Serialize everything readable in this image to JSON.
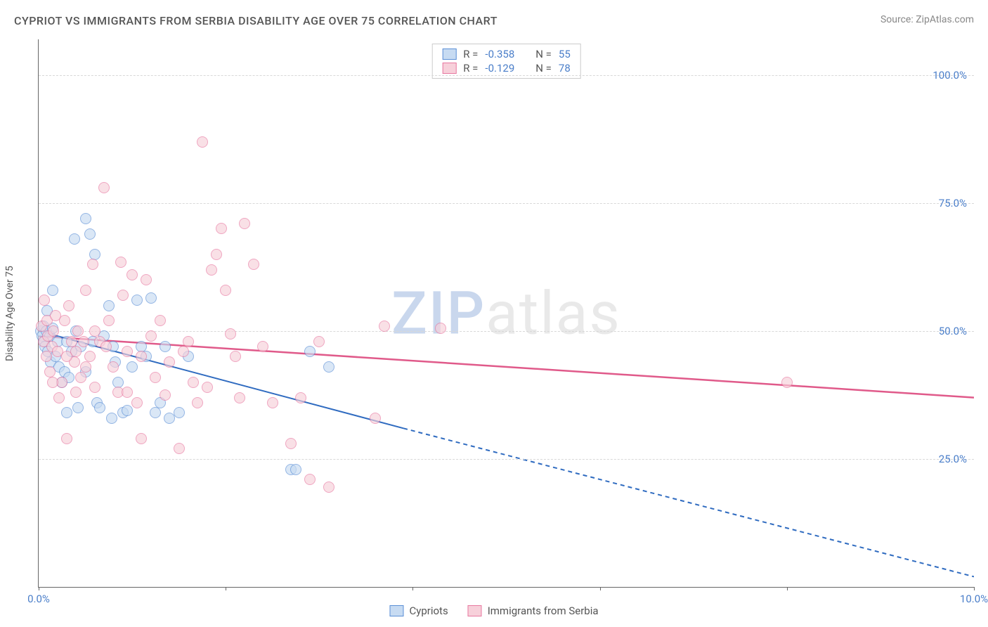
{
  "title": "CYPRIOT VS IMMIGRANTS FROM SERBIA DISABILITY AGE OVER 75 CORRELATION CHART",
  "source": "Source: ZipAtlas.com",
  "watermark": {
    "part1": "ZIP",
    "part2": "atlas"
  },
  "y_axis_title": "Disability Age Over 75",
  "chart": {
    "type": "scatter",
    "xlim": [
      0,
      10
    ],
    "ylim": [
      0,
      107
    ],
    "x_ticks": [
      0,
      2,
      4,
      6,
      8,
      10
    ],
    "x_tick_labels": {
      "0": "0.0%",
      "10": "10.0%"
    },
    "y_grid": [
      25,
      50,
      75,
      100
    ],
    "y_tick_labels": [
      "25.0%",
      "50.0%",
      "75.0%",
      "100.0%"
    ],
    "grid_color": "#d8d8d8",
    "axis_color": "#666666",
    "background_color": "#ffffff",
    "tick_label_color": "#4a7ec9",
    "tick_label_fontsize": 15,
    "point_radius": 8,
    "point_border_width": 1.5,
    "series": [
      {
        "name": "Cypriots",
        "fill": "#c7dbf2",
        "stroke": "#5b8fd6",
        "fill_opacity": 0.65,
        "R": "-0.358",
        "N": "55",
        "trend": {
          "x1": 0,
          "y1": 50,
          "x2": 3.9,
          "y2": 31,
          "solid_to_x": 3.9,
          "dash_to_x": 10,
          "dash_to_y": 2,
          "color": "#2f6bc0",
          "width": 2
        },
        "points": [
          [
            0.02,
            50
          ],
          [
            0.04,
            49
          ],
          [
            0.05,
            51
          ],
          [
            0.06,
            48
          ],
          [
            0.07,
            47
          ],
          [
            0.08,
            50
          ],
          [
            0.09,
            54
          ],
          [
            0.1,
            46
          ],
          [
            0.12,
            49
          ],
          [
            0.13,
            44
          ],
          [
            0.15,
            50.5
          ],
          [
            0.15,
            58
          ],
          [
            0.18,
            45
          ],
          [
            0.2,
            48
          ],
          [
            0.22,
            43
          ],
          [
            0.25,
            40
          ],
          [
            0.28,
            42
          ],
          [
            0.3,
            48
          ],
          [
            0.32,
            41
          ],
          [
            0.35,
            46
          ],
          [
            0.4,
            50
          ],
          [
            0.42,
            35
          ],
          [
            0.45,
            47
          ],
          [
            0.5,
            42
          ],
          [
            0.55,
            69
          ],
          [
            0.58,
            48
          ],
          [
            0.6,
            65
          ],
          [
            0.62,
            36
          ],
          [
            0.65,
            35
          ],
          [
            0.7,
            49
          ],
          [
            0.75,
            55
          ],
          [
            0.78,
            33
          ],
          [
            0.8,
            47
          ],
          [
            0.82,
            44
          ],
          [
            0.85,
            40
          ],
          [
            0.9,
            34
          ],
          [
            0.95,
            34.5
          ],
          [
            1.0,
            43
          ],
          [
            1.05,
            56
          ],
          [
            1.1,
            47
          ],
          [
            1.15,
            45
          ],
          [
            1.2,
            56.5
          ],
          [
            1.25,
            34
          ],
          [
            1.3,
            36
          ],
          [
            1.35,
            47
          ],
          [
            1.4,
            33
          ],
          [
            1.5,
            34
          ],
          [
            1.6,
            45
          ],
          [
            2.7,
            23
          ],
          [
            2.75,
            23
          ],
          [
            2.9,
            46
          ],
          [
            3.1,
            43
          ],
          [
            0.5,
            72
          ],
          [
            0.3,
            34
          ],
          [
            0.38,
            68
          ]
        ]
      },
      {
        "name": "Immigrants from Serbia",
        "fill": "#f7d0da",
        "stroke": "#e878a0",
        "fill_opacity": 0.65,
        "R": "-0.129",
        "N": "78",
        "trend": {
          "x1": 0,
          "y1": 49,
          "x2": 10,
          "y2": 37,
          "solid_to_x": 10,
          "color": "#e05a8a",
          "width": 2.5
        },
        "points": [
          [
            0.03,
            51
          ],
          [
            0.05,
            48
          ],
          [
            0.06,
            56
          ],
          [
            0.08,
            45
          ],
          [
            0.09,
            52
          ],
          [
            0.1,
            49
          ],
          [
            0.12,
            42
          ],
          [
            0.14,
            47
          ],
          [
            0.16,
            50
          ],
          [
            0.18,
            53
          ],
          [
            0.2,
            46
          ],
          [
            0.22,
            37
          ],
          [
            0.25,
            40
          ],
          [
            0.28,
            52
          ],
          [
            0.3,
            29
          ],
          [
            0.32,
            55
          ],
          [
            0.35,
            48
          ],
          [
            0.38,
            44
          ],
          [
            0.4,
            38
          ],
          [
            0.42,
            50
          ],
          [
            0.45,
            41
          ],
          [
            0.48,
            48
          ],
          [
            0.5,
            58
          ],
          [
            0.55,
            45
          ],
          [
            0.58,
            63
          ],
          [
            0.6,
            39
          ],
          [
            0.65,
            48
          ],
          [
            0.7,
            78
          ],
          [
            0.72,
            47
          ],
          [
            0.75,
            52
          ],
          [
            0.8,
            43
          ],
          [
            0.85,
            38
          ],
          [
            0.88,
            63.5
          ],
          [
            0.9,
            57
          ],
          [
            0.95,
            46
          ],
          [
            1.0,
            61
          ],
          [
            1.05,
            36
          ],
          [
            1.1,
            45
          ],
          [
            1.15,
            60
          ],
          [
            1.2,
            49
          ],
          [
            1.25,
            41
          ],
          [
            1.3,
            52
          ],
          [
            1.35,
            37.5
          ],
          [
            1.4,
            44
          ],
          [
            1.5,
            27
          ],
          [
            1.6,
            48
          ],
          [
            1.7,
            36
          ],
          [
            1.75,
            87
          ],
          [
            1.8,
            39
          ],
          [
            1.85,
            62
          ],
          [
            1.9,
            65
          ],
          [
            1.95,
            70
          ],
          [
            2.0,
            58
          ],
          [
            2.05,
            49.5
          ],
          [
            2.1,
            45
          ],
          [
            2.15,
            37
          ],
          [
            2.2,
            71
          ],
          [
            2.3,
            63
          ],
          [
            2.4,
            47
          ],
          [
            2.7,
            28
          ],
          [
            2.8,
            37
          ],
          [
            2.9,
            21
          ],
          [
            3.0,
            48
          ],
          [
            3.1,
            19.5
          ],
          [
            3.6,
            33
          ],
          [
            3.7,
            51
          ],
          [
            4.3,
            50.5
          ],
          [
            8.0,
            40
          ],
          [
            0.5,
            43
          ],
          [
            0.6,
            50
          ],
          [
            0.4,
            46
          ],
          [
            0.3,
            45
          ],
          [
            0.95,
            38
          ],
          [
            1.1,
            29
          ],
          [
            1.55,
            46
          ],
          [
            1.65,
            40
          ],
          [
            2.5,
            36
          ],
          [
            0.15,
            40
          ]
        ]
      }
    ]
  },
  "corr_legend": {
    "r_label": "R =",
    "n_label": "N ="
  },
  "bottom_legend_labels": [
    "Cypriots",
    "Immigrants from Serbia"
  ]
}
